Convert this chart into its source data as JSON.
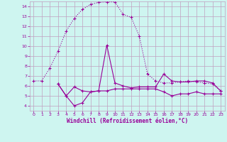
{
  "background_color": "#cef5f0",
  "grid_color": "#c0a0c0",
  "line_color": "#990099",
  "xlabel": "Windchill (Refroidissement éolien,°C)",
  "xlim": [
    -0.5,
    23.5
  ],
  "ylim": [
    3.5,
    14.5
  ],
  "xticks": [
    0,
    1,
    2,
    3,
    4,
    5,
    6,
    7,
    8,
    9,
    10,
    11,
    12,
    13,
    14,
    15,
    16,
    17,
    18,
    19,
    20,
    21,
    22,
    23
  ],
  "yticks": [
    4,
    5,
    6,
    7,
    8,
    9,
    10,
    11,
    12,
    13,
    14
  ],
  "line1_x": [
    0,
    1,
    2,
    3,
    4,
    5,
    6,
    7,
    8,
    9,
    10,
    11,
    12,
    13,
    14,
    15,
    16,
    17,
    18,
    19,
    20,
    21,
    22,
    23
  ],
  "line1_y": [
    6.5,
    6.5,
    7.8,
    9.5,
    11.5,
    12.8,
    13.7,
    14.2,
    14.4,
    14.45,
    14.45,
    13.2,
    12.9,
    11.0,
    7.2,
    6.5,
    6.3,
    6.3,
    6.4,
    6.5,
    6.4,
    6.3,
    6.2,
    5.5
  ],
  "line2_x": [
    3,
    4,
    5,
    6,
    7,
    8,
    9,
    10,
    11,
    12,
    13,
    14,
    15,
    16,
    17,
    18,
    19,
    20,
    21,
    22,
    23
  ],
  "line2_y": [
    6.2,
    5.0,
    5.9,
    5.5,
    5.4,
    5.5,
    5.5,
    5.7,
    5.7,
    5.7,
    5.7,
    5.7,
    5.7,
    5.4,
    5.0,
    5.2,
    5.2,
    5.4,
    5.2,
    5.2,
    5.2
  ],
  "line3_x": [
    3,
    4,
    5,
    6,
    7,
    8,
    9,
    10,
    11,
    12,
    13,
    14,
    15,
    16,
    17,
    18,
    19,
    20,
    21,
    22,
    23
  ],
  "line3_y": [
    6.2,
    5.0,
    4.0,
    4.3,
    5.4,
    5.5,
    10.1,
    6.3,
    6.0,
    5.8,
    5.9,
    5.9,
    5.9,
    7.2,
    6.5,
    6.4,
    6.4,
    6.5,
    6.5,
    6.3,
    5.5
  ]
}
